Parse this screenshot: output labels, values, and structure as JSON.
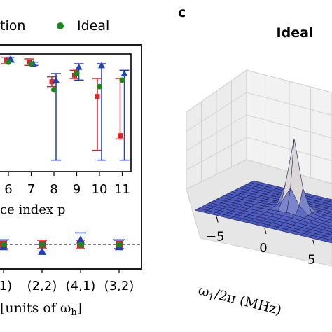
{
  "legend": {
    "entry_simulation": "tion",
    "entry_ideal": "Ideal",
    "ideal_color": "#1a8a1a"
  },
  "panel_c": {
    "letter": "c",
    "title": "Ideal"
  },
  "chart_data": [
    {
      "type": "scatter",
      "panel": "upper-left (cropped)",
      "xlabel": "ce index p",
      "x_ticks": [
        "6",
        "7",
        "8",
        "9",
        "10",
        "11"
      ],
      "series": [
        {
          "marker": "square",
          "color": "#d62728",
          "points": [
            {
              "x": 6,
              "y": 0.98,
              "lo": 0.96,
              "hi": 1.0
            },
            {
              "x": 7,
              "y": 0.97,
              "lo": 0.95,
              "hi": 0.99
            },
            {
              "x": 8,
              "y": 0.85,
              "lo": 0.82,
              "hi": 0.88
            },
            {
              "x": 9,
              "y": 0.89,
              "lo": 0.87,
              "hi": 0.92
            },
            {
              "x": 10,
              "y": 0.76,
              "lo": 0.43,
              "hi": 0.87
            },
            {
              "x": 11,
              "y": 0.52,
              "lo": 0.5,
              "hi": 0.87
            }
          ]
        },
        {
          "marker": "triangle",
          "color": "#1f3fbf",
          "points": [
            {
              "x": 6,
              "y": 0.99,
              "lo": 0.97,
              "hi": 1.0
            },
            {
              "x": 7,
              "y": 0.96,
              "lo": 0.95,
              "hi": 0.97
            },
            {
              "x": 8,
              "y": 0.86,
              "lo": 0.37,
              "hi": 0.9
            },
            {
              "x": 9,
              "y": 0.94,
              "lo": 0.86,
              "hi": 0.96
            },
            {
              "x": 10,
              "y": 0.95,
              "lo": 0.37,
              "hi": 0.96
            },
            {
              "x": 11,
              "y": 0.9,
              "lo": 0.37,
              "hi": 0.92
            }
          ]
        },
        {
          "marker": "circle",
          "color": "#1a8a1a",
          "points": [
            {
              "x": 6,
              "y": 0.97
            },
            {
              "x": 7,
              "y": 0.96
            },
            {
              "x": 8,
              "y": 0.8
            },
            {
              "x": 9,
              "y": 0.9
            },
            {
              "x": 10,
              "y": 0.82
            },
            {
              "x": 11,
              "y": 0.86
            }
          ]
        }
      ]
    },
    {
      "type": "scatter",
      "panel": "lower-left (cropped)",
      "xlabel": "[units of ω",
      "xlabel_sub": "h",
      "xlabel_close": "]",
      "x_ticks": [
        ",1)",
        "(2,2)",
        "(4,1)",
        "(3,2)"
      ],
      "reference_line": 1.0,
      "series": [
        {
          "marker": "square",
          "color": "#d62728",
          "points": [
            {
              "i": 0,
              "y": 1.0
            },
            {
              "i": 1,
              "y": 1.0
            },
            {
              "i": 2,
              "y": 1.0
            },
            {
              "i": 3,
              "y": 1.0
            }
          ]
        },
        {
          "marker": "triangle",
          "color": "#1f3fbf",
          "points": [
            {
              "i": 0,
              "y": 0.99
            },
            {
              "i": 1,
              "y": 0.97
            },
            {
              "i": 2,
              "y": 1.02
            },
            {
              "i": 3,
              "y": 0.99
            }
          ]
        },
        {
          "marker": "circle",
          "color": "#1a8a1a",
          "points": [
            {
              "i": 0,
              "y": 1.0
            },
            {
              "i": 1,
              "y": 1.0
            },
            {
              "i": 2,
              "y": 1.0
            },
            {
              "i": 3,
              "y": 1.0
            }
          ]
        }
      ]
    },
    {
      "type": "surface3d",
      "panel": "c",
      "title": "Ideal",
      "xlabel": "ω",
      "xlabel_sub": "1",
      "xlabel_rest": "/2π (MHz)",
      "x_ticks": [
        "−5",
        "0",
        "5"
      ],
      "colormap": "coolwarm",
      "peak": {
        "x": 0,
        "y": 0,
        "value": 1.0
      }
    }
  ]
}
